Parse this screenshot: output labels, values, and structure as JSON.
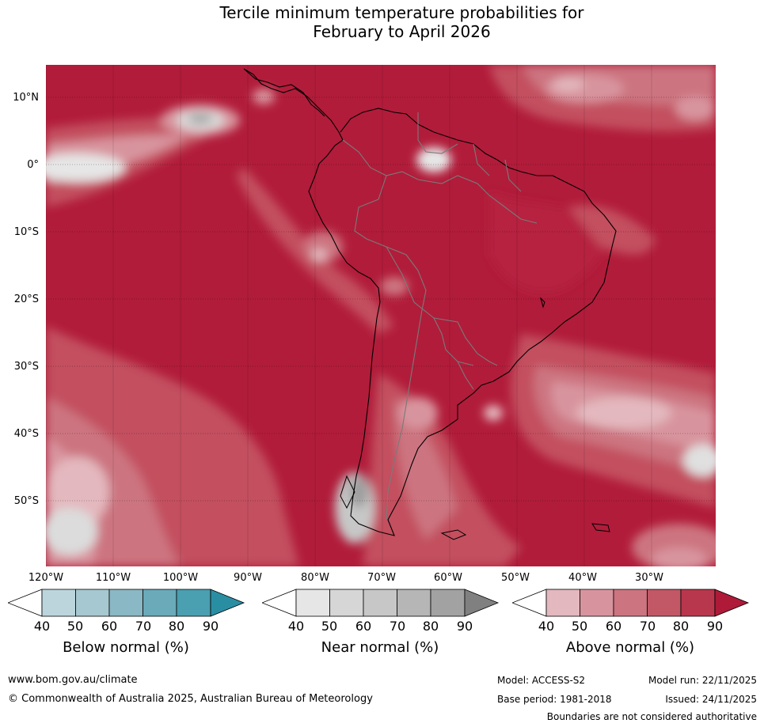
{
  "title": {
    "line1": "Tercile minimum temperature probabilities for",
    "line2": "February to April 2026"
  },
  "map": {
    "lat_labels": [
      "10°N",
      "0°",
      "10°S",
      "20°S",
      "30°S",
      "40°S",
      "50°S"
    ],
    "lon_labels": [
      "120°W",
      "110°W",
      "100°W",
      "90°W",
      "80°W",
      "70°W",
      "60°W",
      "50°W",
      "40°W",
      "30°W"
    ]
  },
  "colorbars": [
    {
      "title": "Below normal (%)",
      "ticks": [
        "40",
        "50",
        "60",
        "70",
        "80",
        "90"
      ],
      "colors": [
        "#bcd5dc",
        "#a6c8d0",
        "#8ab8c4",
        "#6aaab9",
        "#4a9fb0",
        "#2a8ea3"
      ]
    },
    {
      "title": "Near normal (%)",
      "ticks": [
        "40",
        "50",
        "60",
        "70",
        "80",
        "90"
      ],
      "colors": [
        "#e6e6e6",
        "#d6d6d6",
        "#c7c7c7",
        "#b6b6b6",
        "#a2a2a2",
        "#808080"
      ]
    },
    {
      "title": "Above normal (%)",
      "ticks": [
        "40",
        "50",
        "60",
        "70",
        "80",
        "90"
      ],
      "colors": [
        "#e3b8be",
        "#d8949e",
        "#cc7480",
        "#c25866",
        "#b9374c",
        "#ae1a38"
      ]
    }
  ],
  "footer": {
    "website": "www.bom.gov.au/climate",
    "copyright": "© Commonwealth of Australia 2025, Australian Bureau of Meteorology",
    "model": "Model: ACCESS-S2",
    "base_period": "Base period: 1981-2018",
    "model_run": "Model run: 22/11/2025",
    "issued": "Issued: 24/11/2025",
    "disclaimer": "Boundaries are not considered authoritative"
  }
}
